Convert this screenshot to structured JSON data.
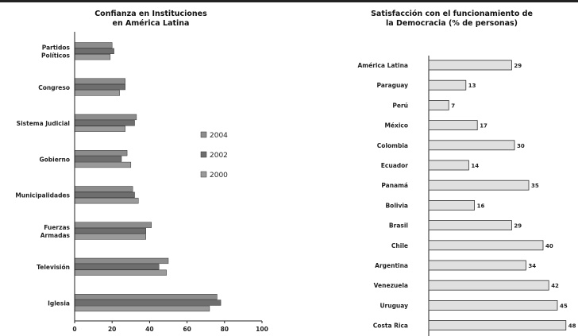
{
  "chart_data": [
    {
      "type": "bar",
      "orientation": "horizontal",
      "title": "Confianza en Instituciones\nen América Latina",
      "categories": [
        "Partidos\nPolíticos",
        "Congreso",
        "Sistema Judicial",
        "Gobierno",
        "Municipalidades",
        "Fuerzas\nArmadas",
        "Televisión",
        "Iglesia"
      ],
      "series": [
        {
          "name": "2004",
          "color": "#8c8c8c",
          "values": [
            20,
            27,
            33,
            28,
            31,
            41,
            50,
            76
          ]
        },
        {
          "name": "2002",
          "color": "#6e6e6e",
          "values": [
            21,
            27,
            32,
            25,
            32,
            38,
            45,
            78
          ]
        },
        {
          "name": "2000",
          "color": "#9a9a9a",
          "values": [
            19,
            24,
            27,
            30,
            34,
            38,
            49,
            72
          ]
        }
      ],
      "xticks": [
        "0",
        "20",
        "40",
        "60",
        "80",
        "100"
      ],
      "xlim": [
        0,
        100
      ],
      "legend_position": "right"
    },
    {
      "type": "bar",
      "orientation": "horizontal",
      "title": "Satisfacción con el funcionamiento de\nla Democracia (% de personas)",
      "categories": [
        "América Latina",
        "Paraguay",
        "Perú",
        "México",
        "Colombia",
        "Ecuador",
        "Panamá",
        "Bolivia",
        "Brasil",
        "Chile",
        "Argentina",
        "Venezuela",
        "Uruguay",
        "Costa Rica"
      ],
      "values": [
        29,
        13,
        7,
        17,
        30,
        14,
        35,
        16,
        29,
        40,
        34,
        42,
        45,
        48
      ],
      "xlim": [
        0,
        50
      ],
      "bar_color": "#e0e0e0"
    }
  ]
}
